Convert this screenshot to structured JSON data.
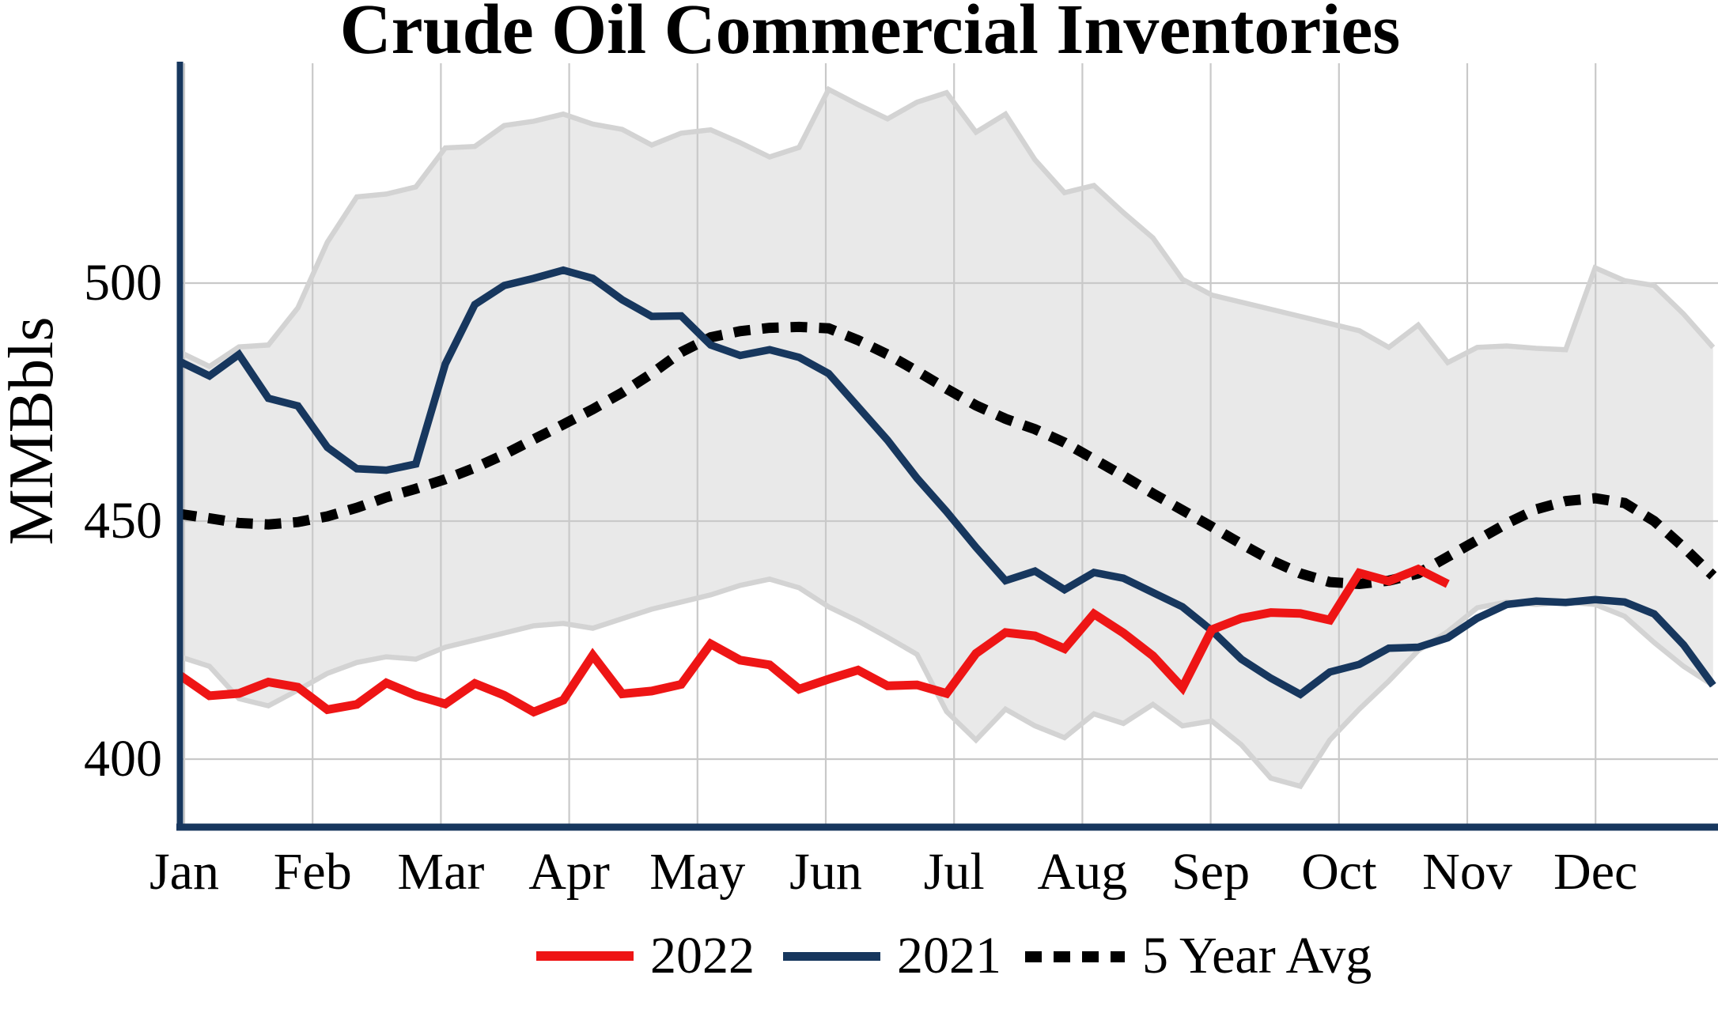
{
  "chart_data": {
    "type": "line",
    "title": "Crude Oil Commercial Inventories",
    "ylabel": "MMBbls",
    "x_tick_labels": [
      "Jan",
      "Feb",
      "Mar",
      "Apr",
      "May",
      "Jun",
      "Jul",
      "Aug",
      "Sep",
      "Oct",
      "Nov",
      "Dec"
    ],
    "y_ticks": [
      {
        "label": "500",
        "value": 500
      },
      {
        "label": "450",
        "value": 450
      },
      {
        "label": "400",
        "value": 400
      }
    ],
    "ylim": [
      386,
      546
    ],
    "xlim_days": [
      0,
      364
    ],
    "grid": true,
    "grid_color": "#C9C9C9",
    "axis_color": "#17375E",
    "legend_position": "bottom",
    "band": {
      "name": "5 Year Range",
      "fill": "#E9E9E9",
      "edge": "#D3D3D3",
      "start_day": 0,
      "step_days": 7,
      "upper": [
        485.5,
        482.5,
        486.6,
        487.0,
        494.8,
        508.6,
        518.1,
        518.7,
        520.2,
        528.4,
        528.7,
        533.1,
        534.0,
        535.5,
        533.4,
        532.3,
        529.0,
        531.5,
        532.2,
        529.5,
        526.5,
        528.5,
        540.7,
        537.5,
        534.5,
        538.0,
        540.0,
        531.7,
        535.5,
        525.9,
        519.0,
        520.5,
        514.8,
        509.5,
        500.8,
        497.5,
        496.0,
        494.5,
        493.0,
        491.5,
        490.0,
        486.5,
        491.2,
        483.3,
        486.5,
        486.8,
        486.3,
        486.0,
        503.2,
        500.5,
        499.5,
        493.5,
        486.5
      ],
      "lower": [
        421.5,
        419.5,
        412.7,
        411.2,
        414.5,
        418.0,
        420.3,
        421.5,
        421.0,
        423.5,
        425.0,
        426.5,
        428.0,
        428.5,
        427.5,
        429.5,
        431.5,
        433.0,
        434.5,
        436.5,
        437.8,
        436.0,
        432.0,
        429.0,
        425.6,
        422.0,
        410.0,
        404.0,
        410.5,
        407.0,
        404.5,
        409.5,
        407.5,
        411.5,
        407.0,
        408.0,
        403.0,
        396.0,
        394.3,
        404.0,
        410.5,
        416.4,
        422.8,
        426.8,
        431.8,
        433.0,
        432.5,
        433.0,
        432.5,
        430.0,
        424.5,
        419.5,
        415.5
      ]
    },
    "series": [
      {
        "name": "2022",
        "color": "#EE1515",
        "style": "solid",
        "width": 11,
        "start_day": 0,
        "step_days": 7,
        "values": [
          417.6,
          413.3,
          413.8,
          416.2,
          415.1,
          410.4,
          411.5,
          416.0,
          413.4,
          411.6,
          415.9,
          413.4,
          409.9,
          412.4,
          421.8,
          413.7,
          414.3,
          415.7,
          424.2,
          420.8,
          419.8,
          414.7,
          416.8,
          418.7,
          415.4,
          415.6,
          413.8,
          422.2,
          426.6,
          425.9,
          423.2,
          430.5,
          426.5,
          421.7,
          415.0,
          427.2,
          429.6,
          430.8,
          430.6,
          429.2,
          439.1,
          437.4,
          439.9,
          436.8
        ]
      },
      {
        "name": "2021",
        "color": "#17375E",
        "style": "solid",
        "width": 9.5,
        "start_day": 0,
        "step_days": 7,
        "values": [
          483.5,
          480.5,
          485.0,
          475.8,
          474.2,
          465.5,
          461.0,
          460.7,
          462.0,
          483.0,
          495.5,
          499.5,
          501.0,
          502.7,
          501.0,
          496.5,
          493.0,
          493.1,
          487.0,
          484.8,
          486.0,
          484.4,
          481.0,
          474.0,
          467.0,
          459.0,
          452.0,
          444.5,
          437.5,
          439.5,
          435.6,
          439.2,
          438.0,
          435.0,
          432.0,
          427.0,
          421.0,
          417.0,
          413.6,
          418.3,
          419.9,
          423.3,
          423.5,
          425.5,
          429.6,
          432.5,
          433.2,
          432.9,
          433.5,
          433.0,
          430.5,
          424.0,
          415.5
        ]
      },
      {
        "name": "5 Year Avg",
        "color": "#000000",
        "style": "dotted",
        "width": 13,
        "start_day": 0,
        "step_days": 7,
        "values": [
          451.5,
          450.6,
          449.6,
          449.3,
          449.8,
          451.0,
          452.8,
          455.0,
          456.8,
          458.8,
          461.2,
          464.0,
          467.2,
          470.3,
          473.5,
          477.0,
          481.0,
          485.5,
          488.6,
          489.9,
          490.6,
          490.8,
          490.5,
          488.0,
          485.0,
          481.5,
          477.8,
          474.3,
          471.5,
          469.3,
          466.5,
          463.0,
          459.5,
          455.8,
          452.3,
          448.8,
          445.2,
          441.8,
          439.0,
          437.2,
          436.8,
          437.5,
          439.0,
          442.5,
          446.0,
          449.5,
          452.5,
          454.2,
          454.8,
          453.8,
          450.0,
          444.5,
          438.5
        ]
      }
    ]
  }
}
